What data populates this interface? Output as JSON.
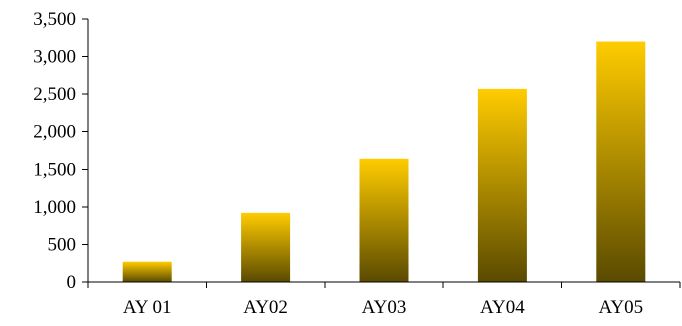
{
  "chart_data": {
    "type": "bar",
    "categories": [
      "AY 01",
      "AY02",
      "AY03",
      "AY04",
      "AY05"
    ],
    "values": [
      270,
      920,
      1640,
      2570,
      3200
    ],
    "title": "",
    "xlabel": "",
    "ylabel": "",
    "ylim": [
      0,
      3500
    ],
    "yticks": [
      "0",
      "500",
      "1,000",
      "1,500",
      "2,000",
      "2,500",
      "3,000",
      "3,500"
    ],
    "grid": false,
    "legend": "none",
    "colors": {
      "bar_top": "#FFCC00",
      "bar_bottom": "#5A4A00",
      "axis": "#000000"
    }
  }
}
